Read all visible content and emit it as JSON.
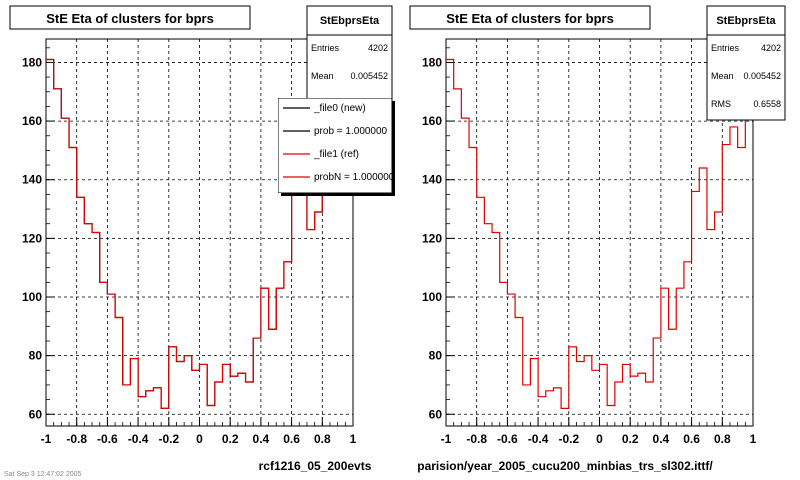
{
  "chart_data": [
    {
      "type": "histogram",
      "title": "StE Eta of clusters for bprs",
      "xlim": [
        -1,
        1
      ],
      "ylim": [
        56,
        188
      ],
      "x_ticks": [
        "-1",
        "-0.8",
        "-0.6",
        "-0.4",
        "-0.2",
        "0",
        "0.2",
        "0.4",
        "0.6",
        "0.8",
        "1"
      ],
      "y_ticks": [
        "60",
        "80",
        "100",
        "120",
        "140",
        "160",
        "180"
      ],
      "grid": true,
      "bin_edges": [
        -1.0,
        -0.95,
        -0.9,
        -0.85,
        -0.8,
        -0.75,
        -0.7,
        -0.65,
        -0.6,
        -0.55,
        -0.5,
        -0.45,
        -0.4,
        -0.35,
        -0.3,
        -0.25,
        -0.2,
        -0.15,
        -0.1,
        -0.05,
        0.0,
        0.05,
        0.1,
        0.15,
        0.2,
        0.25,
        0.3,
        0.35,
        0.4,
        0.45,
        0.5,
        0.55,
        0.6,
        0.65,
        0.7,
        0.75,
        0.8,
        0.85,
        0.9,
        0.95,
        1.0
      ],
      "series": [
        {
          "name": "_file0 (new)",
          "color": "#000000",
          "values": [
            181,
            171,
            161,
            151,
            134,
            125,
            122,
            105,
            101,
            93,
            70,
            79,
            66,
            68,
            69,
            62,
            83,
            78,
            80,
            75,
            77,
            63,
            71,
            77,
            73,
            74,
            71,
            86,
            103,
            89,
            103,
            112,
            136,
            144,
            123,
            129,
            152,
            158,
            151,
            181
          ]
        },
        {
          "name": "_file1 (ref)",
          "color": "#e00000",
          "values": [
            181,
            171,
            161,
            151,
            134,
            125,
            122,
            105,
            101,
            93,
            70,
            79,
            66,
            68,
            69,
            62,
            83,
            78,
            80,
            75,
            77,
            63,
            71,
            77,
            73,
            74,
            71,
            86,
            103,
            89,
            103,
            112,
            136,
            144,
            123,
            129,
            152,
            158,
            151,
            181
          ]
        }
      ],
      "stats": {
        "header": "StEbprsEta",
        "rows": [
          {
            "label": "Entries",
            "value": "4202"
          },
          {
            "label": "Mean",
            "value": "0.005452"
          }
        ]
      },
      "legend": [
        "_file0 (new)",
        "prob = 1.000000",
        "_file1 (ref)",
        "probN = 1.000000"
      ],
      "footer": "rcf1216_05_200evts",
      "corner_text": "Sat Sep 3 12:47:02 2005"
    },
    {
      "type": "histogram",
      "title": "StE Eta of clusters for bprs",
      "xlim": [
        -1,
        1
      ],
      "ylim": [
        56,
        188
      ],
      "x_ticks": [
        "-1",
        "-0.8",
        "-0.6",
        "-0.4",
        "-0.2",
        "0",
        "0.2",
        "0.4",
        "0.6",
        "0.8",
        "1"
      ],
      "y_ticks": [
        "60",
        "80",
        "100",
        "120",
        "140",
        "160",
        "180"
      ],
      "grid": true,
      "bin_edges": [
        -1.0,
        -0.95,
        -0.9,
        -0.85,
        -0.8,
        -0.75,
        -0.7,
        -0.65,
        -0.6,
        -0.55,
        -0.5,
        -0.45,
        -0.4,
        -0.35,
        -0.3,
        -0.25,
        -0.2,
        -0.15,
        -0.1,
        -0.05,
        0.0,
        0.05,
        0.1,
        0.15,
        0.2,
        0.25,
        0.3,
        0.35,
        0.4,
        0.45,
        0.5,
        0.55,
        0.6,
        0.65,
        0.7,
        0.75,
        0.8,
        0.85,
        0.9,
        0.95,
        1.0
      ],
      "series": [
        {
          "name": "_file1 (ref)",
          "color": "#e00000",
          "values": [
            181,
            171,
            161,
            151,
            134,
            125,
            122,
            105,
            101,
            93,
            70,
            79,
            66,
            68,
            69,
            62,
            83,
            78,
            80,
            75,
            77,
            63,
            71,
            77,
            73,
            74,
            71,
            86,
            103,
            89,
            103,
            112,
            136,
            144,
            123,
            129,
            152,
            158,
            151,
            181
          ]
        }
      ],
      "stats": {
        "header": "StEbprsEta",
        "rows": [
          {
            "label": "Entries",
            "value": "4202"
          },
          {
            "label": "Mean",
            "value": "0.005452"
          },
          {
            "label": "RMS",
            "value": "0.6558"
          }
        ]
      },
      "legend": [],
      "footer": "parision/year_2005_cucu200_minbias_trs_sl302.ittf/",
      "corner_text": ""
    }
  ]
}
